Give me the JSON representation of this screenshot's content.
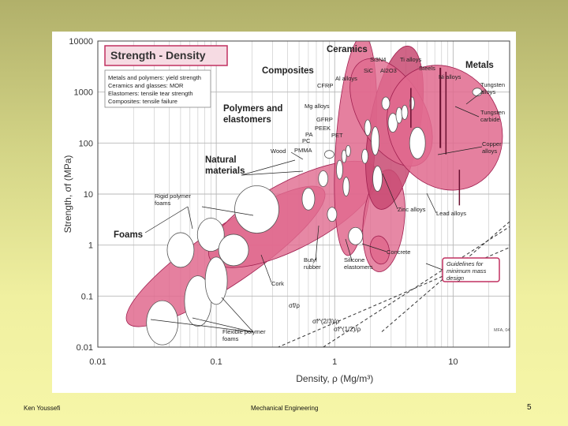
{
  "slide": {
    "footer_left": "Ken Youssefi",
    "footer_center": "Mechanical Engineering",
    "page_number": "5"
  },
  "colors": {
    "bubble_fill": "#e06a8e",
    "bubble_fill_dark": "#c84a72",
    "bubble_stroke": "#a02050",
    "grid": "#b8b8b8",
    "panel_bg": "#ffffff"
  },
  "chart_data": {
    "type": "scatter",
    "title": "Strength - Density",
    "xlabel": "Density, ρ (Mg/m³)",
    "ylabel": "Strength, σf (MPa)",
    "log_x": true,
    "log_y": true,
    "xlim": [
      0.01,
      30
    ],
    "ylim": [
      0.01,
      10000
    ],
    "grid": true,
    "x_ticks": [
      "0.01",
      "0.1",
      "1",
      "10"
    ],
    "y_ticks": [
      "10000",
      "1000",
      "100",
      "10",
      "1",
      "0.1",
      "0.01"
    ],
    "notes": [
      "Metals and polymers: yield strength",
      "Ceramics and glasses: MOR",
      "Elastomers: tensile tear strength",
      "Composites: tensile failure"
    ],
    "corner_label": "MFA, 04",
    "families": [
      {
        "label": "Ceramics"
      },
      {
        "label": "Composites"
      },
      {
        "label": "Metals"
      },
      {
        "label": "Polymers and elastomers"
      },
      {
        "label": "Natural materials"
      },
      {
        "label": "Foams"
      }
    ],
    "material_labels": [
      {
        "label": "Si3N4"
      },
      {
        "label": "SiC"
      },
      {
        "label": "Al2O3"
      },
      {
        "label": "Ti alloys"
      },
      {
        "label": "Steels"
      },
      {
        "label": "Ni alloys"
      },
      {
        "label": "Al alloys"
      },
      {
        "label": "CFRP"
      },
      {
        "label": "Mg alloys"
      },
      {
        "label": "GFRP"
      },
      {
        "label": "PEEK"
      },
      {
        "label": "PET"
      },
      {
        "label": "PA"
      },
      {
        "label": "PC"
      },
      {
        "label": "PMMA"
      },
      {
        "label": "Wood"
      },
      {
        "label": "Tungsten alloys"
      },
      {
        "label": "Tungsten carbide"
      },
      {
        "label": "Copper alloys"
      },
      {
        "label": "Zinc alloys"
      },
      {
        "label": "Lead alloys"
      },
      {
        "label": "Concrete"
      },
      {
        "label": "Butyl rubber"
      },
      {
        "label": "Silicone elastomers"
      },
      {
        "label": "Cork"
      },
      {
        "label": "Rigid polymer foams"
      },
      {
        "label": "Flexible polymer foams"
      }
    ],
    "guidelines": {
      "label": "Guidelines for minimum mass design",
      "index_labels": [
        "σf/ρ",
        "σf^(2/3)/ρ",
        "σf^(1/2)/ρ"
      ],
      "exponents": [
        1,
        0.6667,
        0.5
      ]
    }
  }
}
